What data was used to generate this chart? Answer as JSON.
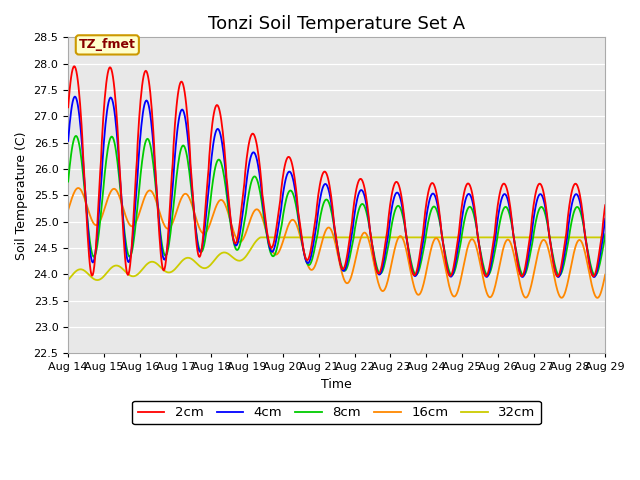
{
  "title": "Tonzi Soil Temperature Set A",
  "xlabel": "Time",
  "ylabel": "Soil Temperature (C)",
  "ylim": [
    22.5,
    28.5
  ],
  "annotation_text": "TZ_fmet",
  "annotation_bg": "#ffffcc",
  "annotation_border": "#cc9900",
  "line_colors": {
    "2cm": "#ff0000",
    "4cm": "#0000ff",
    "8cm": "#00cc00",
    "16cm": "#ff8800",
    "32cm": "#cccc00"
  },
  "x_tick_labels": [
    "Aug 14",
    "Aug 15",
    "Aug 16",
    "Aug 17",
    "Aug 18",
    "Aug 19",
    "Aug 20",
    "Aug 21",
    "Aug 22",
    "Aug 23",
    "Aug 24",
    "Aug 25",
    "Aug 26",
    "Aug 27",
    "Aug 28",
    "Aug 29"
  ],
  "plot_bg": "#e8e8e8",
  "fig_bg": "#ffffff",
  "grid_color": "#ffffff",
  "title_fontsize": 13,
  "axis_fontsize": 9,
  "tick_fontsize": 8
}
